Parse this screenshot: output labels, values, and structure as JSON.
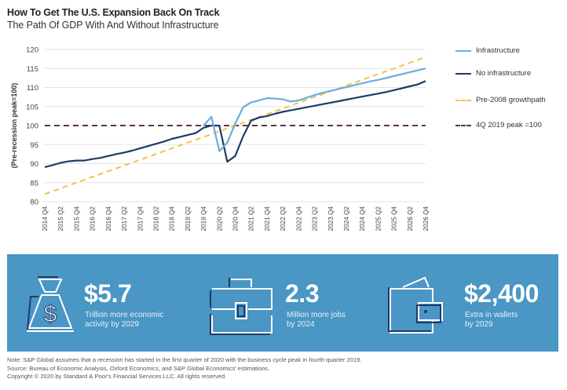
{
  "chart_data": {
    "type": "line",
    "title": "How To Get The U.S. Expansion Back On Track",
    "subtitle": "The Path Of GDP With And Without Infrastructure",
    "xlabel": "",
    "ylabel": "(Pre-recession peak=100)",
    "ylim": [
      80,
      120
    ],
    "yticks": [
      80,
      85,
      90,
      95,
      100,
      105,
      110,
      115,
      120
    ],
    "grid": true,
    "legend_position": "right",
    "x_tick_labels": [
      "2014 Q4",
      "2015 Q2",
      "2015 Q4",
      "2016 Q2",
      "2016 Q4",
      "2017 Q2",
      "2017 Q4",
      "2018 Q2",
      "2018 Q4",
      "2019 Q2",
      "2019 Q4",
      "2020 Q2",
      "2020 Q4",
      "2021 Q2",
      "2021 Q4",
      "2022 Q2",
      "2022 Q4",
      "2023 Q2",
      "2023 Q4",
      "2024 Q2",
      "2024 Q4",
      "2025 Q2",
      "2025 Q4",
      "2026 Q2",
      "2026 Q4"
    ],
    "x_start": "2014 Q4",
    "x_end": "2026 Q4",
    "series": [
      {
        "name": "Infrastructure",
        "color": "#6aaedb",
        "style": "solid",
        "x_quarters": [
          20,
          21,
          22,
          23,
          24,
          25,
          26,
          27,
          28,
          29,
          30,
          31,
          32,
          33,
          34,
          35,
          36,
          37,
          38,
          39,
          40,
          41,
          42,
          43,
          44,
          45,
          46,
          47,
          48
        ],
        "values": [
          100.0,
          102.3,
          93.3,
          95.5,
          100.5,
          104.8,
          106.1,
          106.6,
          107.2,
          107.1,
          106.9,
          106.3,
          106.6,
          107.3,
          108.0,
          108.6,
          109.1,
          109.6,
          110.1,
          110.6,
          111.1,
          111.6,
          112.0,
          112.5,
          113.0,
          113.5,
          114.0,
          114.5,
          115.0
        ]
      },
      {
        "name": "No infrastructure",
        "color": "#1f3a6b",
        "style": "solid",
        "x_quarters": [
          0,
          1,
          2,
          3,
          4,
          5,
          6,
          7,
          8,
          9,
          10,
          11,
          12,
          13,
          14,
          15,
          16,
          17,
          18,
          19,
          20,
          21,
          22,
          23,
          24,
          25,
          26,
          27,
          28,
          29,
          30,
          31,
          32,
          33,
          34,
          35,
          36,
          37,
          38,
          39,
          40,
          41,
          42,
          43,
          44,
          45,
          46,
          47,
          48
        ],
        "values": [
          89.1,
          89.6,
          90.2,
          90.6,
          90.8,
          90.8,
          91.2,
          91.5,
          92.0,
          92.5,
          92.9,
          93.4,
          94.0,
          94.6,
          95.2,
          95.8,
          96.5,
          97.0,
          97.5,
          98.0,
          99.4,
          100.0,
          100.0,
          90.5,
          92.0,
          97.2,
          101.3,
          102.1,
          102.5,
          103.1,
          103.6,
          104.0,
          104.4,
          104.8,
          105.2,
          105.6,
          106.0,
          106.4,
          106.8,
          107.2,
          107.6,
          108.0,
          108.4,
          108.8,
          109.3,
          109.8,
          110.3,
          110.8,
          111.7
        ]
      },
      {
        "name": "Pre-2008 growthpath",
        "color": "#f2c14e",
        "style": "dashed",
        "x_quarters": [
          0,
          48
        ],
        "values": [
          82.0,
          118.0
        ]
      },
      {
        "name": "4Q 2019 peak =100",
        "color": "#5b3a33",
        "style": "dashed",
        "x_quarters": [
          0,
          48
        ],
        "values": [
          100,
          100
        ]
      }
    ]
  },
  "stats": [
    {
      "icon": "money-bag-icon",
      "value": "$5.7",
      "desc_line1": "Trillion more economic",
      "desc_line2": "activity by 2029"
    },
    {
      "icon": "briefcase-icon",
      "value": "2.3",
      "desc_line1": "Million more jobs",
      "desc_line2": "by 2024"
    },
    {
      "icon": "wallet-icon",
      "value": "$2,400",
      "desc_line1": "Extra in wallets",
      "desc_line2": "by 2029"
    }
  ],
  "notes": {
    "note": "Note: S&P Global assumes that a recession has started in the first quarter of 2020 with the business cycle peak in fourth-quarter 2019.",
    "source": "Source: Bureau of Economic Analysis, Oxford Economics, and S&P Global Economics' estimations.",
    "copyright": "Copyright © 2020 by Standard & Poor's Financial Services LLC. All rights reserved."
  }
}
